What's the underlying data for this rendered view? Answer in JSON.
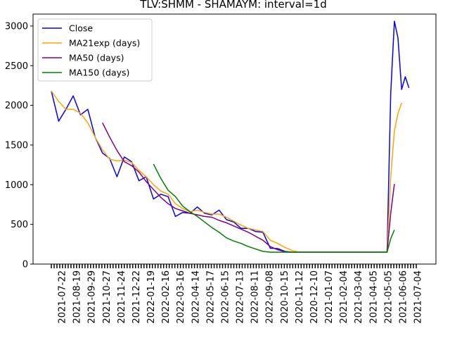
{
  "chart_data": {
    "type": "line",
    "title": "TLV:SHMM - SHAMAYM: interval=1d",
    "xlabel": "",
    "ylabel": "",
    "ylim": [
      0,
      3150
    ],
    "yticks": [
      0,
      500,
      1000,
      1500,
      2000,
      2500,
      3000
    ],
    "grid": false,
    "legend_position": "top-left",
    "xtick_labels": [
      "2021-07-22",
      "2021-08-19",
      "2021-09-29",
      "2021-10-27",
      "2021-11-24",
      "2021-12-22",
      "2022-01-19",
      "2022-02-16",
      "2022-03-16",
      "2022-04-14",
      "2022-05-17",
      "2022-06-15",
      "2022-07-13",
      "2022-08-11",
      "2022-09-08",
      "2020-10-15",
      "2020-11-12",
      "2020-12-10",
      "2021-01-07",
      "2021-02-04",
      "2021-03-04",
      "2021-04-05",
      "2021-05-05",
      "2021-06-06",
      "2021-07-04"
    ],
    "x": [
      0,
      0.5,
      1,
      1.5,
      2,
      2.5,
      3,
      3.5,
      4,
      4.5,
      5,
      5.5,
      6,
      6.5,
      7,
      7.5,
      8,
      8.5,
      9,
      9.5,
      10,
      10.5,
      11,
      11.5,
      12,
      12.5,
      13,
      13.5,
      14,
      14.5,
      15,
      15.5,
      16,
      16.5,
      17,
      17.5,
      18,
      18.5,
      19,
      19.5,
      20,
      20.5,
      21,
      21.5,
      22,
      22.5,
      23,
      23.25,
      23.5,
      23.75,
      24,
      24.25,
      24.5,
      24.75,
      25
    ],
    "series": [
      {
        "name": "Close",
        "color": "#0000ff",
        "values": [
          2180,
          1800,
          1950,
          2120,
          1880,
          1950,
          1600,
          1400,
          1330,
          1100,
          1350,
          1290,
          1050,
          1100,
          820,
          880,
          850,
          600,
          650,
          640,
          720,
          640,
          620,
          680,
          560,
          530,
          450,
          450,
          410,
          400,
          200,
          195,
          160,
          150,
          150,
          150,
          150,
          150,
          150,
          150,
          150,
          150,
          150,
          150,
          150,
          150,
          150,
          2150,
          3060,
          2850,
          2200,
          2360,
          2220,
          null,
          null
        ]
      },
      {
        "name": "MA21exp (days)",
        "color": "#ffa500",
        "values": [
          2180,
          2050,
          1950,
          1950,
          1900,
          1780,
          1600,
          1440,
          1320,
          1300,
          1310,
          1280,
          1180,
          1100,
          1000,
          920,
          880,
          760,
          700,
          660,
          680,
          650,
          630,
          630,
          590,
          540,
          490,
          450,
          430,
          410,
          300,
          260,
          210,
          170,
          150,
          150,
          150,
          150,
          150,
          150,
          150,
          150,
          150,
          150,
          150,
          150,
          150,
          1100,
          1680,
          1900,
          2030,
          null,
          null,
          null,
          null
        ]
      },
      {
        "name": "MA50 (days)",
        "color": "#800080",
        "values": [
          null,
          null,
          null,
          null,
          null,
          null,
          null,
          1780,
          1600,
          1430,
          1290,
          1240,
          1160,
          1040,
          940,
          840,
          760,
          700,
          670,
          640,
          620,
          600,
          590,
          550,
          520,
          480,
          440,
          400,
          350,
          300,
          220,
          180,
          155,
          150,
          150,
          150,
          150,
          150,
          150,
          150,
          150,
          150,
          150,
          150,
          150,
          150,
          150,
          640,
          1010,
          null,
          null,
          null,
          null,
          null,
          null
        ]
      },
      {
        "name": "MA150 (days)",
        "color": "#008000",
        "values": [
          null,
          null,
          null,
          null,
          null,
          null,
          null,
          null,
          null,
          null,
          null,
          null,
          null,
          null,
          1260,
          1080,
          930,
          850,
          730,
          660,
          600,
          530,
          460,
          400,
          330,
          290,
          260,
          220,
          190,
          160,
          150,
          150,
          150,
          150,
          150,
          150,
          150,
          150,
          150,
          150,
          150,
          150,
          150,
          150,
          150,
          150,
          150,
          320,
          430,
          null,
          null,
          null,
          null,
          null,
          null
        ]
      }
    ]
  }
}
